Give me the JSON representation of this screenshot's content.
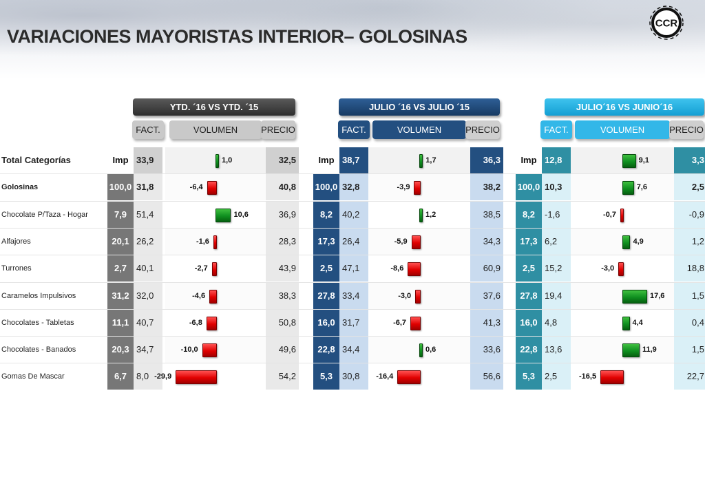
{
  "title": "VARIACIONES MAYORISTAS INTERIOR– GOLOSINAS",
  "logo_text": "CCR",
  "colors": {
    "g1_dark": "#777777",
    "g1_light": "#e9e9e9",
    "g2_dark": "#234f80",
    "g2_light": "#c9dbef",
    "g3_dark": "#2f8fa3",
    "g3_light": "#daf0f7",
    "bar_positive": "green",
    "bar_negative": "red"
  },
  "groups": [
    {
      "header": "YTD. ´16 VS YTD. ´15",
      "fact": "FACT.",
      "volumen": "VOLUMEN",
      "precio": "PRECIO"
    },
    {
      "header": "JULIO ´16 VS  JULIO ´15",
      "fact": "FACT.",
      "volumen": "VOLUMEN",
      "precio": "PRECIO"
    },
    {
      "header": "JULIO´16 VS JUNIO´16",
      "fact": "FACT.",
      "volumen": "VOLUMEN",
      "precio": "PRECIO"
    }
  ],
  "imp_label": "Imp",
  "rows": [
    {
      "label": "Total  Categorías",
      "g": [
        {
          "imp": "",
          "fact": "33,9",
          "vol": "1,0",
          "v": 1.0,
          "precio": "32,5"
        },
        {
          "imp": "",
          "fact": "38,7",
          "vol": "1,7",
          "v": 1.7,
          "precio": "36,3"
        },
        {
          "imp": "",
          "fact": "12,8",
          "vol": "9,1",
          "v": 9.1,
          "precio": "3,3"
        }
      ]
    },
    {
      "label": "Golosinas",
      "g": [
        {
          "imp": "100,0",
          "fact": "31,8",
          "vol": "-6,4",
          "v": -6.4,
          "precio": "40,8"
        },
        {
          "imp": "100,0",
          "fact": "32,8",
          "vol": "-3,9",
          "v": -3.9,
          "precio": "38,2"
        },
        {
          "imp": "100,0",
          "fact": "10,3",
          "vol": "7,6",
          "v": 7.6,
          "precio": "2,5"
        }
      ]
    },
    {
      "label": "Chocolate P/Taza - Hogar",
      "g": [
        {
          "imp": "7,9",
          "fact": "51,4",
          "vol": "10,6",
          "v": 10.6,
          "precio": "36,9"
        },
        {
          "imp": "8,2",
          "fact": "40,2",
          "vol": "1,2",
          "v": 1.2,
          "precio": "38,5"
        },
        {
          "imp": "8,2",
          "fact": "-1,6",
          "vol": "-0,7",
          "v": -0.7,
          "precio": "-0,9"
        }
      ]
    },
    {
      "label": "Alfajores",
      "g": [
        {
          "imp": "20,1",
          "fact": "26,2",
          "vol": "-1,6",
          "v": -1.6,
          "precio": "28,3"
        },
        {
          "imp": "17,3",
          "fact": "26,4",
          "vol": "-5,9",
          "v": -5.9,
          "precio": "34,3"
        },
        {
          "imp": "17,3",
          "fact": "6,2",
          "vol": "4,9",
          "v": 4.9,
          "precio": "1,2"
        }
      ]
    },
    {
      "label": "Turrones",
      "g": [
        {
          "imp": "2,7",
          "fact": "40,1",
          "vol": "-2,7",
          "v": -2.7,
          "precio": "43,9"
        },
        {
          "imp": "2,5",
          "fact": "47,1",
          "vol": "-8,6",
          "v": -8.6,
          "precio": "60,9"
        },
        {
          "imp": "2,5",
          "fact": "15,2",
          "vol": "-3,0",
          "v": -3.0,
          "precio": "18,8"
        }
      ]
    },
    {
      "label": "Caramelos Impulsivos",
      "g": [
        {
          "imp": "31,2",
          "fact": "32,0",
          "vol": "-4,6",
          "v": -4.6,
          "precio": "38,3"
        },
        {
          "imp": "27,8",
          "fact": "33,4",
          "vol": "-3,0",
          "v": -3.0,
          "precio": "37,6"
        },
        {
          "imp": "27,8",
          "fact": "19,4",
          "vol": "17,6",
          "v": 17.6,
          "precio": "1,5"
        }
      ]
    },
    {
      "label": "Chocolates - Tabletas",
      "g": [
        {
          "imp": "11,1",
          "fact": "40,7",
          "vol": "-6,8",
          "v": -6.8,
          "precio": "50,8"
        },
        {
          "imp": "16,0",
          "fact": "31,7",
          "vol": "-6,7",
          "v": -6.7,
          "precio": "41,3"
        },
        {
          "imp": "16,0",
          "fact": "4,8",
          "vol": "4,4",
          "v": 4.4,
          "precio": "0,4"
        }
      ]
    },
    {
      "label": "Chocolates - Banados",
      "g": [
        {
          "imp": "20,3",
          "fact": "34,7",
          "vol": "-10,0",
          "v": -10.0,
          "precio": "49,6"
        },
        {
          "imp": "22,8",
          "fact": "34,4",
          "vol": "0,6",
          "v": 0.6,
          "precio": "33,6"
        },
        {
          "imp": "22,8",
          "fact": "13,6",
          "vol": "11,9",
          "v": 11.9,
          "precio": "1,5"
        }
      ]
    },
    {
      "label": "Gomas De Mascar",
      "g": [
        {
          "imp": "6,7",
          "fact": "8,0",
          "vol": "-29,9",
          "v": -29.9,
          "precio": "54,2"
        },
        {
          "imp": "5,3",
          "fact": "30,8",
          "vol": "-16,4",
          "v": -16.4,
          "precio": "56,6"
        },
        {
          "imp": "5,3",
          "fact": "2,5",
          "vol": "-16,5",
          "v": -16.5,
          "precio": "22,7"
        }
      ]
    }
  ]
}
